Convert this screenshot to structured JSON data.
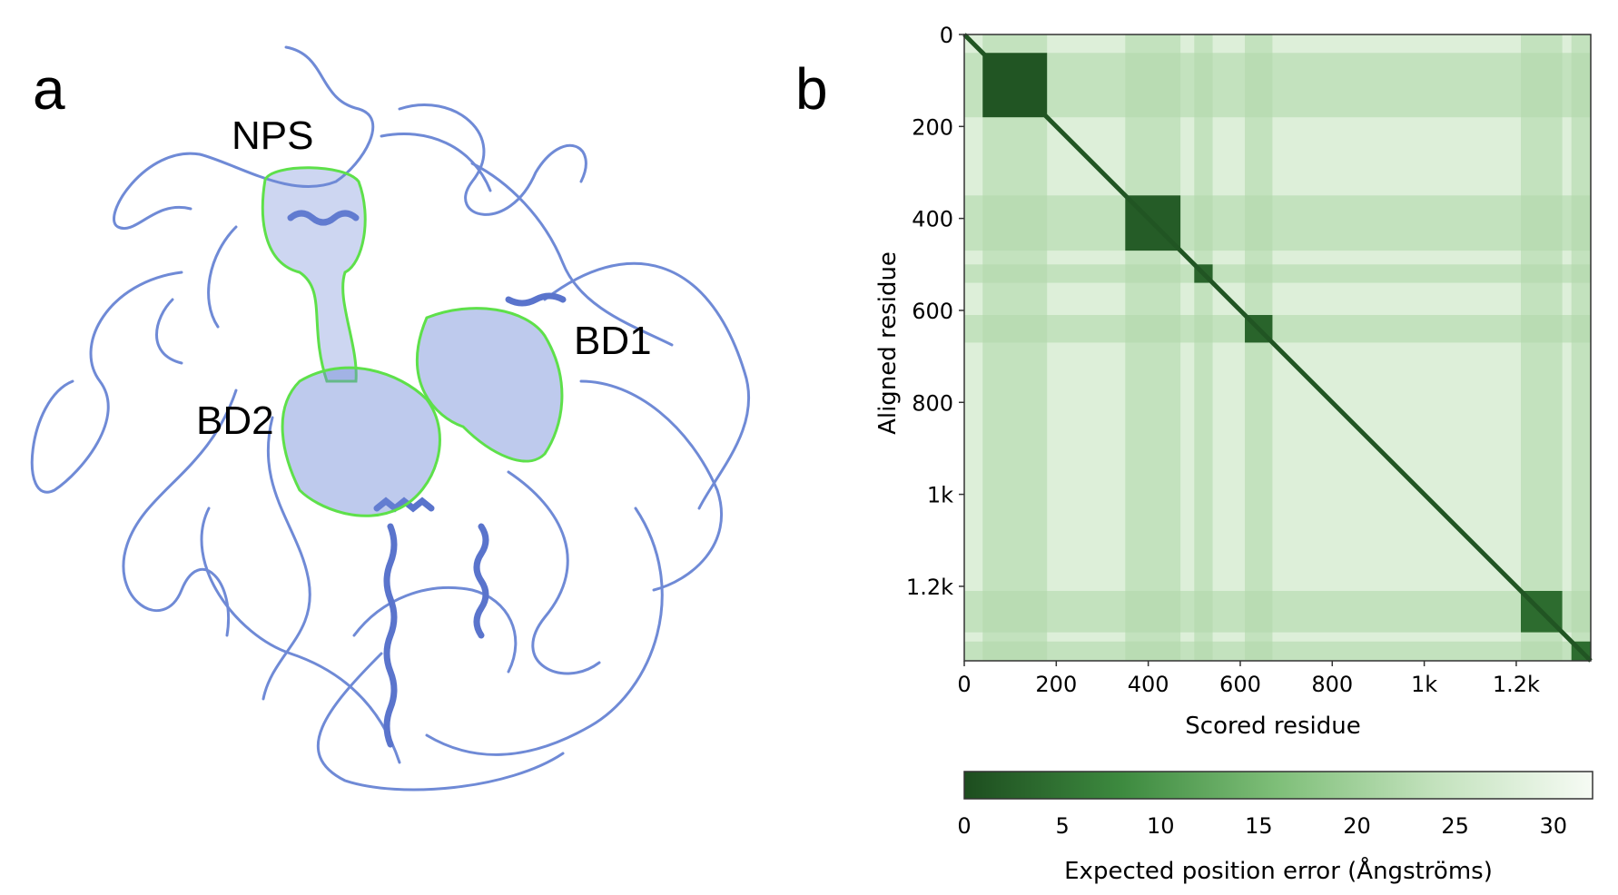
{
  "panel_a": {
    "letter": "a",
    "labels": {
      "nps": "NPS",
      "bd1": "BD1",
      "bd2": "BD2"
    },
    "colors": {
      "ribbon": "#6f8ad6",
      "ribbon_dark": "#4a62b8",
      "domain_outline": "#5ee04a"
    }
  },
  "panel_b": {
    "letter": "b"
  },
  "chart_data": {
    "type": "heatmap",
    "title": "",
    "xlabel": "Scored residue",
    "ylabel": "Aligned residue",
    "x_range": [
      0,
      1362
    ],
    "y_range": [
      0,
      1362
    ],
    "x_ticks": [
      "0",
      "200",
      "400",
      "600",
      "800",
      "1k",
      "1.2k"
    ],
    "x_tick_values": [
      0,
      200,
      400,
      600,
      800,
      1000,
      1200
    ],
    "y_ticks": [
      "0",
      "200",
      "400",
      "600",
      "800",
      "1k",
      "1.2k"
    ],
    "y_tick_values": [
      0,
      200,
      400,
      600,
      800,
      1000,
      1200
    ],
    "low_error_blocks": [
      {
        "start": 40,
        "end": 180,
        "error": 1
      },
      {
        "start": 350,
        "end": 470,
        "error": 2
      },
      {
        "start": 500,
        "end": 540,
        "error": 3
      },
      {
        "start": 610,
        "end": 670,
        "error": 3
      },
      {
        "start": 1210,
        "end": 1300,
        "error": 4
      },
      {
        "start": 1320,
        "end": 1362,
        "error": 4
      }
    ],
    "diagonal_error": 1,
    "background_error": 28,
    "colorbar": {
      "label": "Expected position error (Ångströms)",
      "ticks": [
        "0",
        "5",
        "10",
        "15",
        "20",
        "25",
        "30"
      ],
      "tick_values": [
        0,
        5,
        10,
        15,
        20,
        25,
        30
      ],
      "range": [
        0,
        32
      ],
      "colors": [
        "#1d4d1f",
        "#3d8a3f",
        "#7fbf79",
        "#c3e2bd",
        "#f6fbf4"
      ]
    }
  }
}
